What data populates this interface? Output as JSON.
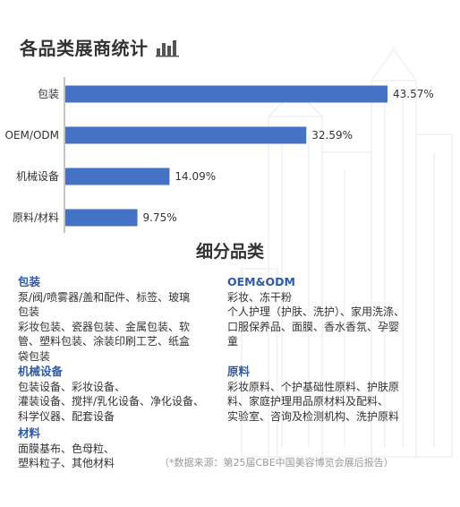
{
  "header": {
    "title": "各品类展商统计"
  },
  "chart_data": {
    "type": "bar",
    "orientation": "horizontal",
    "categories": [
      "包装",
      "OEM/ODM",
      "机械设备",
      "原料/材料"
    ],
    "values": [
      43.57,
      32.59,
      14.09,
      9.75
    ],
    "value_labels": [
      "43.57%",
      "32.59%",
      "14.09%",
      "9.75%"
    ],
    "xlim": [
      0,
      43.57
    ],
    "grid": false,
    "bar_color": "#4472c4"
  },
  "breakdown": {
    "title": "细分品类",
    "left": [
      {
        "name": "包装",
        "lines": [
          "泵/阀/喷雾器/盖和配件、标签、玻璃",
          "包装",
          "彩妆包装、瓷器包装、金属包装、软",
          "管、塑料包装、涂装印刷工艺、纸盒",
          "袋包装"
        ]
      },
      {
        "name": "机械设备",
        "lines": [
          "包装设备、彩妆设备、",
          "灌装设备、搅拌/乳化设备、净化设备、",
          "科学仪器、配套设备"
        ]
      },
      {
        "name": "材料",
        "lines": [
          "面膜基布、色母粒、",
          "塑料粒子、其他材料"
        ]
      }
    ],
    "right": [
      {
        "name": "OEM&ODM",
        "lines": [
          "彩妆、冻干粉",
          "个人护理（护肤、洗护）、家用洗涤、",
          "口服保养品、面膜、香水香氛、孕婴",
          "童"
        ]
      },
      {
        "name": "原料",
        "lines": [
          "彩妆原料、个护基础性原料、护肤原",
          "料、家庭护理用品原材料及配料、",
          "实验室、咨询及检测机构、洗护原料"
        ]
      }
    ]
  },
  "source": "（*数据来源：第25届CBE中国美容博览会展后报告）",
  "colors": {
    "accent": "#2f5ba7",
    "bar": "#4472c4",
    "text": "#333333"
  }
}
